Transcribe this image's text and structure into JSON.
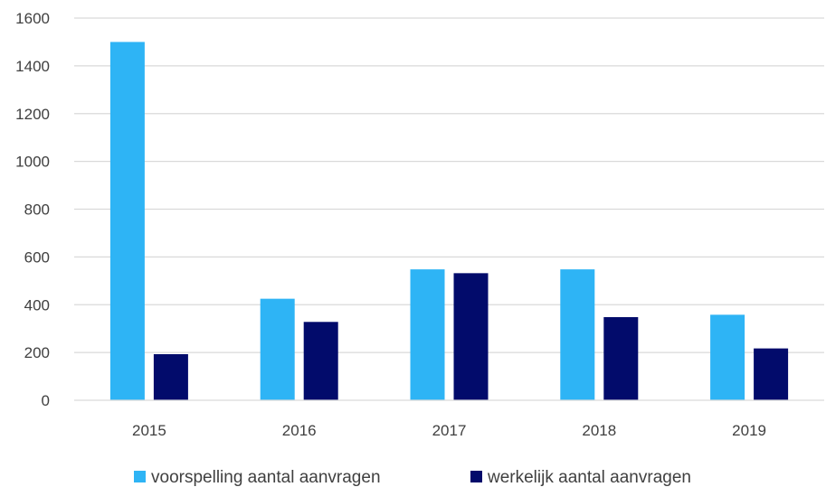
{
  "chart_data": {
    "type": "bar",
    "categories": [
      "2015",
      "2016",
      "2017",
      "2018",
      "2019"
    ],
    "series": [
      {
        "name": "voorspelling aantal aanvragen",
        "values": [
          1500,
          425,
          548,
          548,
          358
        ],
        "color": "#2EB4F5"
      },
      {
        "name": "werkelijk aantal aanvragen",
        "values": [
          193,
          328,
          532,
          348,
          217
        ],
        "color": "#020B6B"
      }
    ],
    "ylim": [
      0,
      1600
    ],
    "yticks": [
      "0",
      "200",
      "400",
      "600",
      "800",
      "1000",
      "1200",
      "1400",
      "1600"
    ],
    "grid": true,
    "legend_position": "bottom",
    "title": "",
    "xlabel": "",
    "ylabel": ""
  }
}
